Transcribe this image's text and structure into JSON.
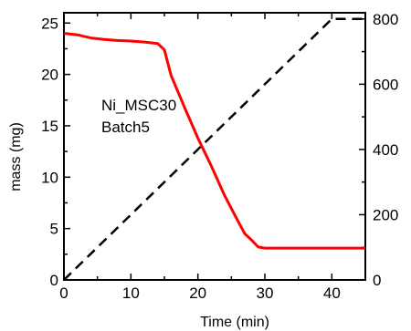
{
  "chart_data": {
    "type": "line",
    "title": "",
    "xlabel": "Time (min)",
    "ylabel": "mass (mg)",
    "y2label": "",
    "xlim": [
      0,
      45
    ],
    "ylim": [
      0,
      26
    ],
    "y2lim": [
      0,
      819
    ],
    "x_ticks": [
      0,
      10,
      20,
      30,
      40
    ],
    "y_ticks": [
      0,
      5,
      10,
      15,
      20,
      25
    ],
    "y2_ticks": [
      0,
      200,
      400,
      600,
      800
    ],
    "grid": false,
    "legend": "none",
    "annotations": [
      "Ni_MSC30",
      "Batch5"
    ],
    "series": [
      {
        "axis": "left",
        "color": "#ff0000",
        "style": "solid",
        "x": [
          0,
          2,
          4,
          6,
          8,
          10,
          12,
          14,
          15,
          16,
          18,
          20,
          22,
          24,
          26,
          27,
          28,
          29,
          30,
          32,
          35,
          40,
          45
        ],
        "y": [
          24.0,
          23.85,
          23.55,
          23.4,
          23.3,
          23.25,
          23.15,
          23.0,
          22.4,
          19.9,
          16.8,
          13.8,
          11.1,
          8.2,
          5.7,
          4.5,
          3.9,
          3.2,
          3.1,
          3.1,
          3.1,
          3.1,
          3.1
        ]
      },
      {
        "axis": "right",
        "color": "#000000",
        "style": "dashed",
        "x": [
          0,
          40,
          45
        ],
        "y": [
          0,
          800,
          800
        ]
      }
    ]
  }
}
